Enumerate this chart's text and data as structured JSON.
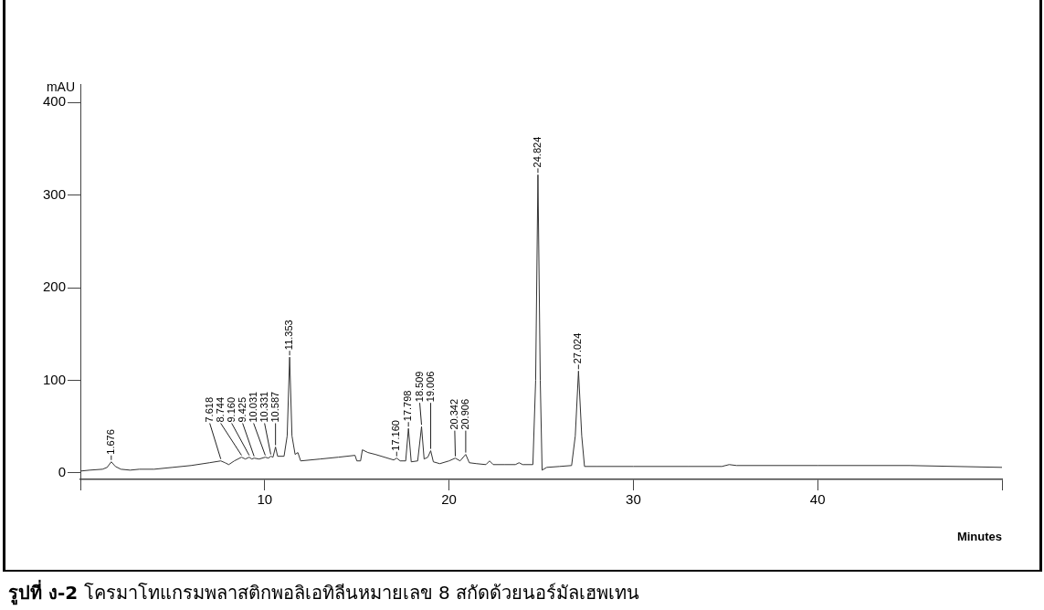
{
  "chart_data": {
    "type": "line",
    "title": "รูปที่ ง-2 โครมาโทแกรมพลาสติกพอลิเอทิลีนหมายเลข 8 สกัดด้วยนอร์มัลเฮพเทน",
    "xlabel": "Minutes",
    "ylabel": "mAU",
    "x": [
      0,
      0.5,
      1.2,
      1.45,
      1.676,
      1.9,
      2.2,
      2.7,
      3.2,
      4,
      5,
      6,
      7,
      7.618,
      7.85,
      8.05,
      8.35,
      8.744,
      8.95,
      9.16,
      9.3,
      9.425,
      9.7,
      10.031,
      10.2,
      10.331,
      10.45,
      10.587,
      10.7,
      11.05,
      11.22,
      11.353,
      11.48,
      11.65,
      11.8,
      11.95,
      13,
      14,
      14.9,
      15,
      15.2,
      15.3,
      15.6,
      16,
      16.5,
      17,
      17.16,
      17.35,
      17.65,
      17.798,
      17.95,
      18.3,
      18.509,
      18.65,
      18.85,
      19.006,
      19.15,
      19.5,
      20,
      20.342,
      20.6,
      20.906,
      21.1,
      21.5,
      22,
      22.2,
      22.4,
      23,
      23.6,
      23.8,
      24,
      24.55,
      24.7,
      24.824,
      24.95,
      25.05,
      25.3,
      26,
      26.65,
      26.85,
      27.024,
      27.2,
      27.35,
      28,
      30,
      33,
      34.8,
      35.2,
      35.6,
      40,
      45,
      50
    ],
    "values": [
      2,
      3,
      4,
      6,
      12,
      7,
      4,
      3,
      4,
      4,
      6,
      8,
      11,
      13,
      11,
      9,
      13,
      17,
      15,
      17,
      15,
      16,
      15,
      17,
      16,
      18,
      17,
      28,
      18,
      18,
      40,
      125,
      40,
      20,
      22,
      13,
      15,
      17,
      19,
      13,
      13,
      25,
      22,
      20,
      17,
      14,
      16,
      13,
      13,
      48,
      12,
      13,
      50,
      15,
      17,
      24,
      12,
      10,
      13,
      16,
      13,
      20,
      11,
      10,
      9,
      13,
      9,
      9,
      9,
      11,
      9,
      9,
      100,
      322,
      100,
      3,
      6,
      7,
      8,
      40,
      110,
      40,
      7,
      7,
      7,
      7,
      7,
      9,
      8,
      8,
      8,
      6
    ],
    "color": "#333333",
    "xlim": [
      0,
      50
    ],
    "ylim": [
      -7,
      420
    ],
    "xticks": [
      {
        "value": 0,
        "label": null
      },
      10,
      20,
      30,
      40,
      {
        "value": 50,
        "label": null
      }
    ],
    "yticks": [
      0,
      100,
      200,
      300,
      400
    ],
    "annotations": [
      {
        "text": "1.676",
        "x": 1.676,
        "y": 12
      },
      {
        "text": "7.618",
        "x": 7.618,
        "y": 13
      },
      {
        "text": "8.744",
        "x": 8.744,
        "y": 17
      },
      {
        "text": "9.160",
        "x": 9.16,
        "y": 17
      },
      {
        "text": "9.425",
        "x": 9.425,
        "y": 16
      },
      {
        "text": "10.031",
        "x": 10.031,
        "y": 17
      },
      {
        "text": "10.331",
        "x": 10.331,
        "y": 18
      },
      {
        "text": "10.587",
        "x": 10.587,
        "y": 28
      },
      {
        "text": "11.353",
        "x": 11.353,
        "y": 125
      },
      {
        "text": "17.160",
        "x": 17.16,
        "y": 16
      },
      {
        "text": "17.798",
        "x": 17.798,
        "y": 48
      },
      {
        "text": "18.509",
        "x": 18.509,
        "y": 50
      },
      {
        "text": "19.006",
        "x": 19.006,
        "y": 24
      },
      {
        "text": "20.342",
        "x": 20.342,
        "y": 16
      },
      {
        "text": "20.906",
        "x": 20.906,
        "y": 20
      },
      {
        "text": "24.824",
        "x": 24.824,
        "y": 322
      },
      {
        "text": "27.024",
        "x": 27.024,
        "y": 110
      }
    ]
  }
}
